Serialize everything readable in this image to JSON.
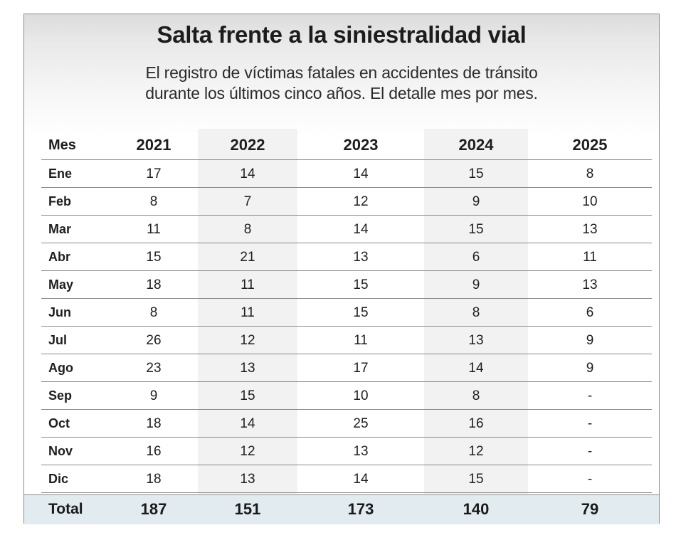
{
  "header": {
    "title": "Salta frente a la siniestralidad vial",
    "subtitle_line1": "El registro de víctimas fatales en accidentes de tránsito",
    "subtitle_line2": "durante los últimos cinco años. El detalle mes por mes."
  },
  "chart_data": {
    "type": "table",
    "title": "Salta frente a la siniestralidad vial",
    "subtitle": "El registro de víctimas fatales en accidentes de tránsito durante los últimos cinco años. El detalle mes por mes.",
    "columns": [
      "Mes",
      "2021",
      "2022",
      "2023",
      "2024",
      "2025"
    ],
    "rows": [
      [
        "Ene",
        "17",
        "14",
        "14",
        "15",
        "8"
      ],
      [
        "Feb",
        "8",
        "7",
        "12",
        "9",
        "10"
      ],
      [
        "Mar",
        "11",
        "8",
        "14",
        "15",
        "13"
      ],
      [
        "Abr",
        "15",
        "21",
        "13",
        "6",
        "11"
      ],
      [
        "May",
        "18",
        "11",
        "15",
        "9",
        "13"
      ],
      [
        "Jun",
        "8",
        "11",
        "15",
        "8",
        "6"
      ],
      [
        "Jul",
        "26",
        "12",
        "11",
        "13",
        "9"
      ],
      [
        "Ago",
        "23",
        "13",
        "17",
        "14",
        "9"
      ],
      [
        "Sep",
        "9",
        "15",
        "10",
        "8",
        "-"
      ],
      [
        "Oct",
        "18",
        "14",
        "25",
        "16",
        "-"
      ],
      [
        "Nov",
        "16",
        "12",
        "13",
        "12",
        "-"
      ],
      [
        "Dic",
        "18",
        "13",
        "14",
        "15",
        "-"
      ]
    ],
    "total": [
      "Total",
      "187",
      "151",
      "173",
      "140",
      "79"
    ]
  },
  "colors": {
    "column_band": "#f2f2f2",
    "total_band": "#e2ebf0",
    "rule": "#8a8a8a"
  }
}
